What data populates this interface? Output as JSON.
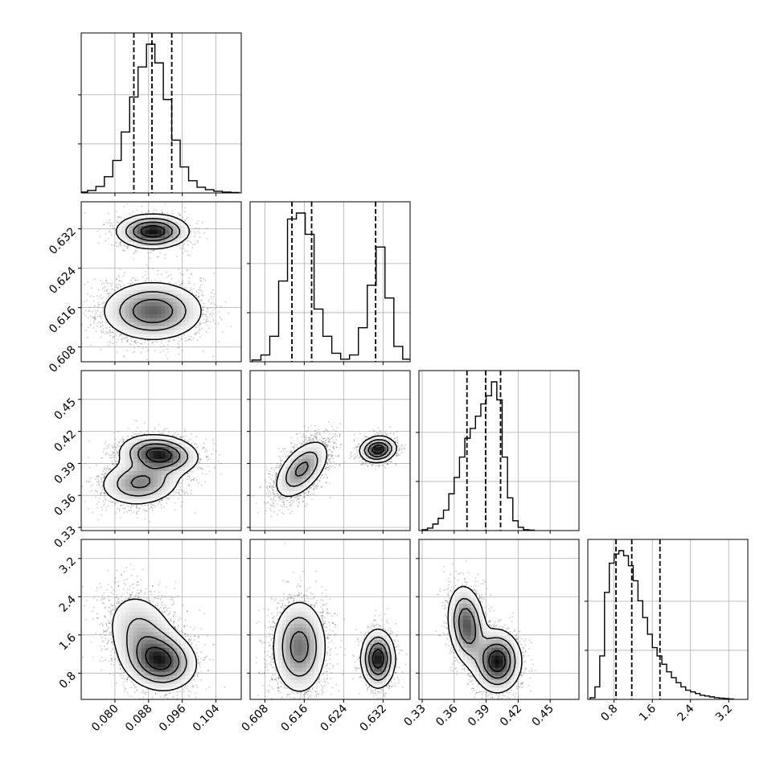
{
  "chart_data": {
    "type": "corner",
    "parameters": [
      {
        "range": [
          0.072,
          0.11
        ],
        "ticks": [
          "0.080",
          "0.088",
          "0.096",
          "0.104"
        ],
        "tick_values": [
          0.08,
          0.088,
          0.096,
          0.104
        ],
        "quantiles": [
          0.0845,
          0.0888,
          0.0935
        ],
        "hist_x": [
          0.0725,
          0.0745,
          0.0765,
          0.0785,
          0.0805,
          0.0825,
          0.0845,
          0.0865,
          0.0885,
          0.0905,
          0.0925,
          0.0945,
          0.0965,
          0.0985,
          0.1005,
          0.1025,
          0.1045,
          0.1065,
          0.1085
        ],
        "hist_counts": [
          1,
          3,
          8,
          20,
          40,
          75,
          118,
          155,
          183,
          160,
          115,
          65,
          32,
          15,
          7,
          4,
          2,
          1,
          0.5
        ]
      },
      {
        "range": [
          0.605,
          0.6375
        ],
        "ticks": [
          "0.608",
          "0.616",
          "0.624",
          "0.632"
        ],
        "tick_values": [
          0.608,
          0.616,
          0.624,
          0.632
        ],
        "quantiles": [
          0.6135,
          0.6175,
          0.6305
        ],
        "hist_x": [
          0.6063,
          0.6081,
          0.6099,
          0.6117,
          0.6135,
          0.6153,
          0.6171,
          0.6189,
          0.6207,
          0.6225,
          0.6243,
          0.6261,
          0.6279,
          0.6297,
          0.6315,
          0.6333,
          0.6351,
          0.6369
        ],
        "hist_counts": [
          2,
          8,
          30,
          95,
          168,
          175,
          150,
          62,
          30,
          10,
          3,
          8,
          40,
          90,
          135,
          75,
          18,
          3
        ]
      },
      {
        "range": [
          0.327,
          0.477
        ],
        "ticks": [
          "0.33",
          "0.36",
          "0.39",
          "0.42",
          "0.45"
        ],
        "tick_values": [
          0.33,
          0.36,
          0.39,
          0.42,
          0.45
        ],
        "quantiles": [
          0.372,
          0.3895,
          0.4035
        ],
        "hist_x": [
          0.3325,
          0.3375,
          0.3425,
          0.3475,
          0.3525,
          0.3575,
          0.3625,
          0.3675,
          0.3725,
          0.3775,
          0.3825,
          0.3875,
          0.3925,
          0.3975,
          0.4025,
          0.4075,
          0.4125,
          0.4175,
          0.4225,
          0.4275,
          0.4325
        ],
        "hist_counts": [
          1,
          3,
          8,
          15,
          25,
          45,
          65,
          90,
          113,
          125,
          140,
          155,
          165,
          182,
          160,
          90,
          40,
          12,
          4,
          1,
          0.5
        ]
      },
      {
        "range": [
          0.25,
          3.6
        ],
        "ticks": [
          "0.8",
          "1.6",
          "2.4",
          "3.2"
        ],
        "tick_values": [
          0.8,
          1.6,
          2.4,
          3.2
        ],
        "quantiles": [
          0.84,
          1.17,
          1.76
        ],
        "hist_x": [
          0.35,
          0.45,
          0.55,
          0.65,
          0.75,
          0.85,
          0.95,
          1.05,
          1.15,
          1.25,
          1.35,
          1.45,
          1.55,
          1.65,
          1.75,
          1.85,
          1.95,
          2.05,
          2.15,
          2.25,
          2.35,
          2.45,
          2.55,
          2.65,
          2.75,
          2.85,
          2.95,
          3.05,
          3.15,
          3.25
        ],
        "hist_counts": [
          2,
          15,
          52,
          128,
          163,
          174,
          178,
          172,
          160,
          142,
          118,
          98,
          78,
          62,
          52,
          42,
          33,
          26,
          20,
          15,
          11,
          9,
          7,
          5,
          4,
          3,
          2,
          1.5,
          1,
          0.5
        ]
      }
    ],
    "pairs": [
      {
        "row": 1,
        "col": 0,
        "modes": [
          {
            "mx": 0.089,
            "my": 0.6315,
            "sx": 0.0042,
            "sy": 0.0017,
            "rho": 0.0,
            "w": 0.35
          },
          {
            "mx": 0.089,
            "my": 0.6153,
            "sx": 0.006,
            "sy": 0.003,
            "rho": 0.0,
            "w": 0.65
          }
        ]
      },
      {
        "row": 2,
        "col": 0,
        "modes": [
          {
            "mx": 0.0905,
            "my": 0.3985,
            "sx": 0.0045,
            "sy": 0.009,
            "rho": -0.15,
            "w": 0.55
          },
          {
            "mx": 0.086,
            "my": 0.372,
            "sx": 0.0048,
            "sy": 0.011,
            "rho": 0.1,
            "w": 0.45
          }
        ]
      },
      {
        "row": 2,
        "col": 1,
        "modes": [
          {
            "mx": 0.6155,
            "my": 0.3845,
            "sx": 0.0028,
            "sy": 0.014,
            "rho": 0.55,
            "w": 0.65
          },
          {
            "mx": 0.631,
            "my": 0.403,
            "sx": 0.0018,
            "sy": 0.006,
            "rho": 0.1,
            "w": 0.35
          }
        ]
      },
      {
        "row": 3,
        "col": 0,
        "modes": [
          {
            "mx": 0.091,
            "my": 1.05,
            "sx": 0.0042,
            "sy": 0.3,
            "rho": -0.1,
            "w": 0.55
          },
          {
            "mx": 0.0865,
            "my": 1.6,
            "sx": 0.0045,
            "sy": 0.48,
            "rho": -0.25,
            "w": 0.45
          }
        ]
      },
      {
        "row": 3,
        "col": 1,
        "modes": [
          {
            "mx": 0.615,
            "my": 1.35,
            "sx": 0.0028,
            "sy": 0.5,
            "rho": 0.0,
            "w": 0.65
          },
          {
            "mx": 0.631,
            "my": 1.1,
            "sx": 0.0017,
            "sy": 0.3,
            "rho": 0.0,
            "w": 0.35
          }
        ]
      },
      {
        "row": 3,
        "col": 2,
        "modes": [
          {
            "mx": 0.4005,
            "my": 1.05,
            "sx": 0.011,
            "sy": 0.32,
            "rho": 0.0,
            "w": 0.55
          },
          {
            "mx": 0.372,
            "my": 1.8,
            "sx": 0.009,
            "sy": 0.42,
            "rho": -0.2,
            "w": 0.45
          }
        ]
      }
    ],
    "grid": true,
    "quantile_style": "dashed",
    "colors": {
      "line": "#000000",
      "grid": "#b0b0b0",
      "points": "#000000",
      "background": "#ffffff"
    }
  }
}
